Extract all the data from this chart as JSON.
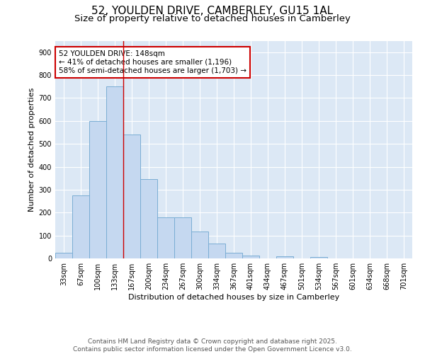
{
  "title_line1": "52, YOULDEN DRIVE, CAMBERLEY, GU15 1AL",
  "title_line2": "Size of property relative to detached houses in Camberley",
  "xlabel": "Distribution of detached houses by size in Camberley",
  "ylabel": "Number of detached properties",
  "bins": [
    "33sqm",
    "67sqm",
    "100sqm",
    "133sqm",
    "167sqm",
    "200sqm",
    "234sqm",
    "267sqm",
    "300sqm",
    "334sqm",
    "367sqm",
    "401sqm",
    "434sqm",
    "467sqm",
    "501sqm",
    "534sqm",
    "567sqm",
    "601sqm",
    "634sqm",
    "668sqm",
    "701sqm"
  ],
  "bar_values": [
    25,
    275,
    600,
    750,
    540,
    345,
    178,
    178,
    118,
    65,
    25,
    12,
    0,
    10,
    0,
    5,
    0,
    0,
    0,
    0,
    0
  ],
  "bar_color": "#c5d8f0",
  "bar_edge_color": "#7aadd4",
  "vline_x_index": 3.5,
  "vline_color": "#cc0000",
  "annotation_text": "52 YOULDEN DRIVE: 148sqm\n← 41% of detached houses are smaller (1,196)\n58% of semi-detached houses are larger (1,703) →",
  "ylim": [
    0,
    950
  ],
  "yticks": [
    0,
    100,
    200,
    300,
    400,
    500,
    600,
    700,
    800,
    900
  ],
  "background_color": "#dce8f5",
  "grid_color": "#ffffff",
  "footer_line1": "Contains HM Land Registry data © Crown copyright and database right 2025.",
  "footer_line2": "Contains public sector information licensed under the Open Government Licence v3.0.",
  "title_fontsize": 11,
  "subtitle_fontsize": 9.5,
  "axis_label_fontsize": 8,
  "tick_fontsize": 7,
  "annotation_fontsize": 7.5,
  "footer_fontsize": 6.5,
  "figsize": [
    6.0,
    5.0
  ],
  "dpi": 100
}
